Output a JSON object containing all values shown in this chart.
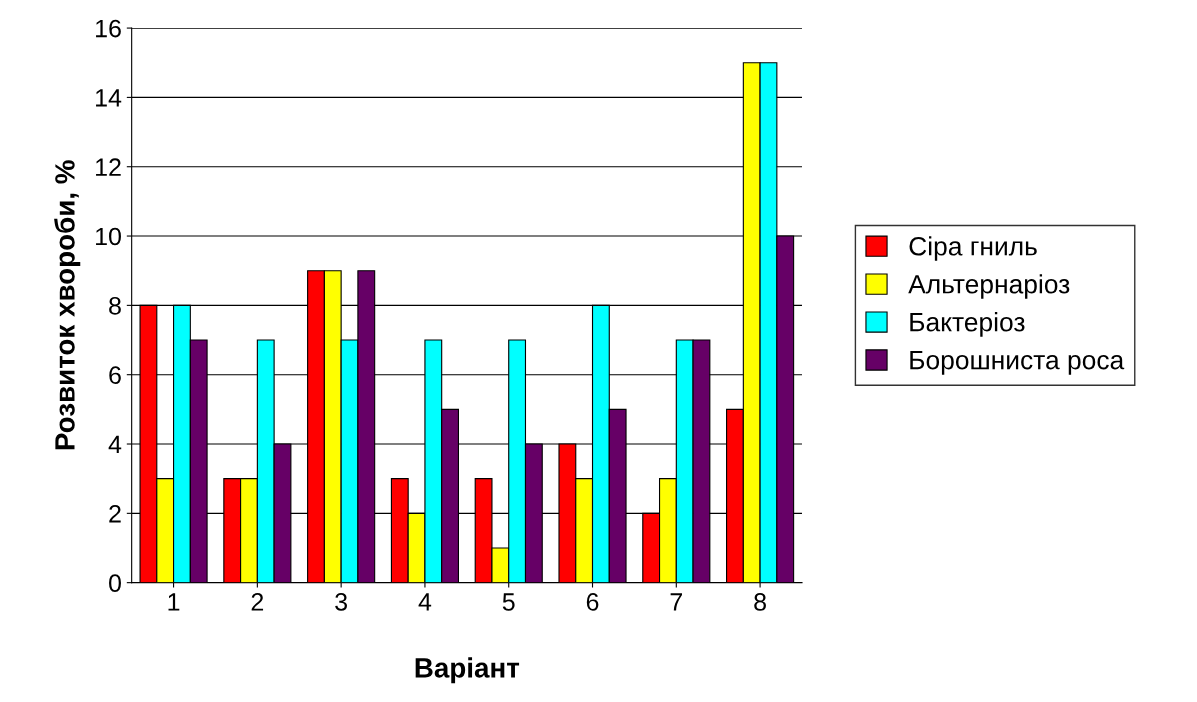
{
  "chart_data": {
    "type": "bar",
    "xlabel": "Варіант",
    "ylabel": "Розвиток хвороби, %",
    "categories": [
      "1",
      "2",
      "3",
      "4",
      "5",
      "6",
      "7",
      "8"
    ],
    "series": [
      {
        "name": "Сіра гниль",
        "color": "#ff0000",
        "values": [
          8,
          3,
          9,
          3,
          3,
          4,
          2,
          5
        ]
      },
      {
        "name": "Альтернаріоз",
        "color": "#ffff00",
        "values": [
          3,
          3,
          9,
          2,
          1,
          3,
          3,
          15
        ]
      },
      {
        "name": "Бактеріоз",
        "color": "#00ffff",
        "values": [
          8,
          7,
          7,
          7,
          7,
          8,
          7,
          15
        ]
      },
      {
        "name": "Борошниста роса",
        "color": "#660066",
        "values": [
          7,
          4,
          9,
          5,
          4,
          5,
          7,
          10
        ]
      }
    ],
    "ylim": [
      0,
      16
    ],
    "yticks": [
      0,
      2,
      4,
      6,
      8,
      10,
      12,
      14,
      16
    ],
    "grid": "y",
    "legend": "right"
  }
}
